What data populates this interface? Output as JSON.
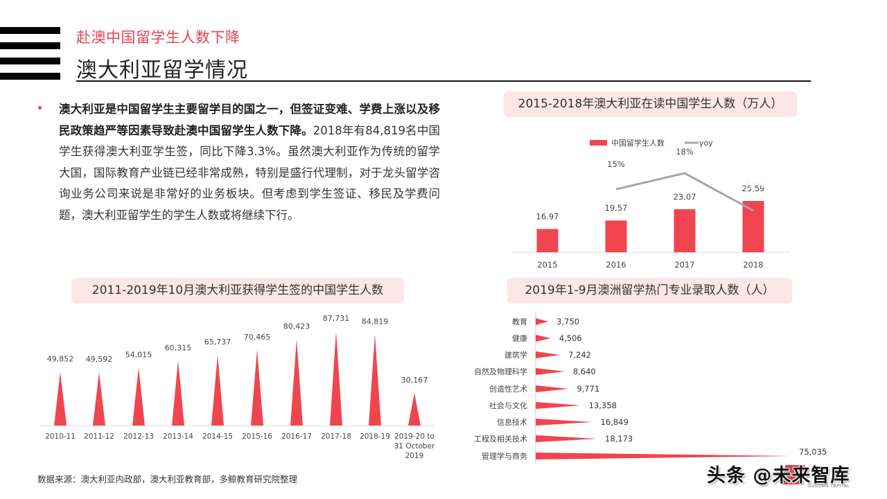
{
  "header": {
    "subtitle": "赴澳中国留学生人数下降",
    "title": "澳大利亚留学情况"
  },
  "summary": {
    "bold_text": "澳大利亚是中国留学生主要留学目的国之一，但签证变难、学费上涨以及移民政策趋严等因素导致赴澳中国留学生人数下降。",
    "body_text": "2018年有84,819名中国学生获得澳大利亚学生签，同比下降3.3%。虽然澳大利亚作为传统的留学大国，国际教育产业链已经非常成熟，特别是盛行代理制，对于龙头留学咨询业务公司来说是非常好的业务板块。但考虑到学生签证、移民及学费问题，澳大利亚留学生的学生人数或将继续下行。"
  },
  "source_note": "数据来源：澳大利亚内政部，澳大利亚教育部，多鲸教育研究院整理",
  "watermark": {
    "text": "头条 @未来智库",
    "sub": "DUOJING CAPITAL"
  },
  "colors": {
    "accent": "#e8424f",
    "bar": "#f0454f",
    "line": "#a6a6a6",
    "title_bg": "#fde6e7"
  },
  "chart_data": [
    {
      "type": "bar",
      "title": "2015-2018年澳大利亚在读中国学生人数（万人）",
      "categories": [
        "2015",
        "2016",
        "2017",
        "2018"
      ],
      "series": [
        {
          "name": "中国留学生人数",
          "type": "bar",
          "values": [
            16.97,
            19.57,
            23.07,
            25.59
          ],
          "labels": [
            "16.97",
            "19.57",
            "23.07",
            "25.59"
          ]
        },
        {
          "name": "yoy",
          "type": "line",
          "values": [
            null,
            15,
            18,
            11
          ],
          "labels": [
            "",
            "15%",
            "18%",
            "11%"
          ]
        }
      ],
      "legend": [
        "中国留学生人数",
        "yoy"
      ],
      "legend_position": "top",
      "grid": false
    },
    {
      "type": "bar",
      "title": "2011-2019年10月澳大利亚获得学生签的中国学生人数",
      "categories": [
        "2010-11",
        "2011-12",
        "2012-13",
        "2013-14",
        "2014-15",
        "2015-16",
        "2016-17",
        "2017-18",
        "2018-19",
        "2019-20 to 31 October 2019"
      ],
      "values": [
        49852,
        49592,
        54015,
        60315,
        65737,
        70465,
        80423,
        87731,
        84819,
        30167
      ],
      "labels": [
        "49,852",
        "49,592",
        "54,015",
        "60,315",
        "65,737",
        "70,465",
        "80,423",
        "87,731",
        "84,819",
        "30,167"
      ],
      "bar_shape": "triangle",
      "grid": false
    },
    {
      "type": "bar",
      "orientation": "horizontal",
      "title": "2019年1-9月澳洲留学热门专业录取人数（人）",
      "categories": [
        "教育",
        "健康",
        "建筑学",
        "自然及物理科学",
        "创造性艺术",
        "社会与文化",
        "信息技术",
        "工程及相关技术",
        "管理学与商务"
      ],
      "values": [
        3750,
        4506,
        7242,
        8640,
        9771,
        13358,
        16849,
        18173,
        75035
      ],
      "labels": [
        "3,750",
        "4,506",
        "7,242",
        "8,640",
        "9,771",
        "13,358",
        "16,849",
        "18,173",
        "75,035"
      ],
      "bar_shape": "wedge",
      "grid": false
    }
  ]
}
